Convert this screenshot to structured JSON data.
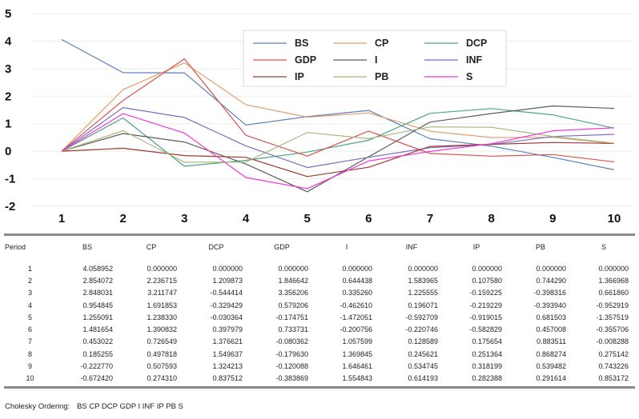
{
  "chart_data": {
    "type": "line",
    "x": [
      1,
      2,
      3,
      4,
      5,
      6,
      7,
      8,
      9,
      10
    ],
    "ylim": [
      -2,
      5
    ],
    "yticks": [
      5,
      4,
      3,
      2,
      1,
      0,
      -1,
      -2
    ],
    "legend_position": "top-right",
    "series": [
      {
        "name": "BS",
        "color": "#5b7fc0",
        "values": [
          4.058952,
          2.854072,
          2.848031,
          0.954845,
          1.255091,
          1.481654,
          0.453022,
          0.185255,
          -0.22277,
          -0.67242
        ]
      },
      {
        "name": "CP",
        "color": "#e0a070",
        "values": [
          0.0,
          2.236715,
          3.211747,
          1.691853,
          1.23833,
          1.390832,
          0.726549,
          0.497818,
          0.507593,
          0.27431
        ]
      },
      {
        "name": "DCP",
        "color": "#4aa585",
        "values": [
          0.0,
          1.209873,
          -0.544414,
          -0.329429,
          -0.030364,
          0.397979,
          1.376621,
          1.549637,
          1.324213,
          0.837512
        ]
      },
      {
        "name": "GDP",
        "color": "#d9534f",
        "values": [
          0.0,
          1.846642,
          3.356206,
          0.579206,
          -0.174751,
          0.733731,
          -0.080362,
          -0.17963,
          -0.120088,
          -0.383869
        ]
      },
      {
        "name": "I",
        "color": "#5d5d5d",
        "values": [
          0.0,
          0.644438,
          0.33526,
          -0.46261,
          -1.472051,
          -0.200756,
          1.057599,
          1.369845,
          1.646461,
          1.554843
        ]
      },
      {
        "name": "INF",
        "color": "#7b6cc0",
        "values": [
          0.0,
          1.583965,
          1.225555,
          0.196071,
          -0.592709,
          -0.220746,
          0.128589,
          0.245621,
          0.534745,
          0.614193
        ]
      },
      {
        "name": "IP",
        "color": "#9b3a2e",
        "values": [
          0.0,
          0.10758,
          -0.159225,
          -0.219229,
          -0.919015,
          -0.582829,
          0.175654,
          0.251364,
          0.318199,
          0.282388
        ]
      },
      {
        "name": "PB",
        "color": "#a5b87a",
        "values": [
          0.0,
          0.74429,
          -0.398316,
          -0.39394,
          0.681503,
          0.457008,
          0.883511,
          0.868274,
          0.539482,
          0.291614
        ]
      },
      {
        "name": "S",
        "color": "#ee38d8",
        "values": [
          0.0,
          1.366968,
          0.66186,
          -0.952919,
          -1.357519,
          -0.355706,
          -0.008288,
          0.275142,
          0.743226,
          0.853172
        ]
      }
    ]
  },
  "table": {
    "columns": [
      "Period",
      "BS",
      "CP",
      "DCP",
      "GDP",
      "I",
      "INF",
      "IP",
      "PB",
      "S"
    ],
    "rows": [
      [
        "1",
        "4.058952",
        "0.000000",
        "0.000000",
        "0.000000",
        "0.000000",
        "0.000000",
        "0.000000",
        "0.000000",
        "0.000000"
      ],
      [
        "2",
        "2.854072",
        "2.236715",
        "1.209873",
        "1.846642",
        "0.644438",
        "1.583965",
        "0.107580",
        "0.744290",
        "1.366968"
      ],
      [
        "3",
        "2.848031",
        "3.211747",
        "-0.544414",
        "3.356206",
        "0.335260",
        "1.225555",
        "-0.159225",
        "-0.398316",
        "0.661860"
      ],
      [
        "4",
        "0.954845",
        "1.691853",
        "-0.329429",
        "0.579206",
        "-0.462610",
        "0.196071",
        "-0.219229",
        "-0.393940",
        "-0.952919"
      ],
      [
        "5",
        "1.255091",
        "1.238330",
        "-0.030364",
        "-0.174751",
        "-1.472051",
        "-0.592709",
        "-0.919015",
        "0.681503",
        "-1.357519"
      ],
      [
        "6",
        "1.481654",
        "1.390832",
        "0.397979",
        "0.733731",
        "-0.200756",
        "-0.220746",
        "-0.582829",
        "0.457008",
        "-0.355706"
      ],
      [
        "7",
        "0.453022",
        "0.726549",
        "1.376621",
        "-0.080362",
        "1.057599",
        "0.128589",
        "0.175654",
        "0.883511",
        "-0.008288"
      ],
      [
        "8",
        "0.185255",
        "0.497818",
        "1.549637",
        "-0.179630",
        "1.369845",
        "0.245621",
        "0.251364",
        "0.868274",
        "0.275142"
      ],
      [
        "9",
        "-0.222770",
        "0.507593",
        "1.324213",
        "-0.120088",
        "1.646461",
        "0.534745",
        "0.318199",
        "0.539482",
        "0.743226"
      ],
      [
        "10",
        "-0.672420",
        "0.274310",
        "0.837512",
        "-0.383869",
        "1.554843",
        "0.614193",
        "0.282388",
        "0.291614",
        "0.853172"
      ]
    ]
  },
  "footer": {
    "label": "Cholesky Ordering:",
    "ordering": "BS CP DCP GDP I INF IP PB S"
  }
}
